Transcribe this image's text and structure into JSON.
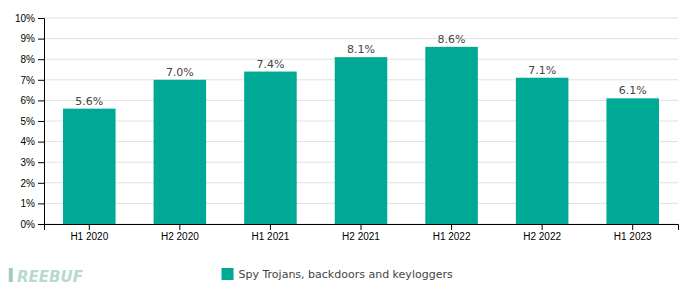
{
  "chart_data": {
    "type": "bar",
    "categories": [
      "H1 2020",
      "H2 2020",
      "H1 2021",
      "H2 2021",
      "H1 2022",
      "H2 2022",
      "H1 2023"
    ],
    "series": [
      {
        "name": "Spy Trojans, backdoors and keyloggers",
        "color": "#00A896",
        "values": [
          5.6,
          7.0,
          7.4,
          8.1,
          8.6,
          7.1,
          6.1
        ],
        "value_labels": [
          "5.6%",
          "7.0%",
          "7.4%",
          "8.1%",
          "8.6%",
          "7.1%",
          "6.1%"
        ]
      }
    ],
    "ylim": [
      0,
      10
    ],
    "yticks": [
      {
        "value": 0,
        "label": "0%"
      },
      {
        "value": 1,
        "label": "1%"
      },
      {
        "value": 2,
        "label": "2%"
      },
      {
        "value": 3,
        "label": "3%"
      },
      {
        "value": 4,
        "label": "4%"
      },
      {
        "value": 5,
        "label": "5%"
      },
      {
        "value": 6,
        "label": "6%"
      },
      {
        "value": 7,
        "label": "7%"
      },
      {
        "value": 8,
        "label": "8%"
      },
      {
        "value": 9,
        "label": "9%"
      },
      {
        "value": 10,
        "label": "10%"
      }
    ],
    "grid": true,
    "data_labels": true,
    "legend": "bottom",
    "annotations": [
      "I",
      "REEBUF"
    ]
  }
}
